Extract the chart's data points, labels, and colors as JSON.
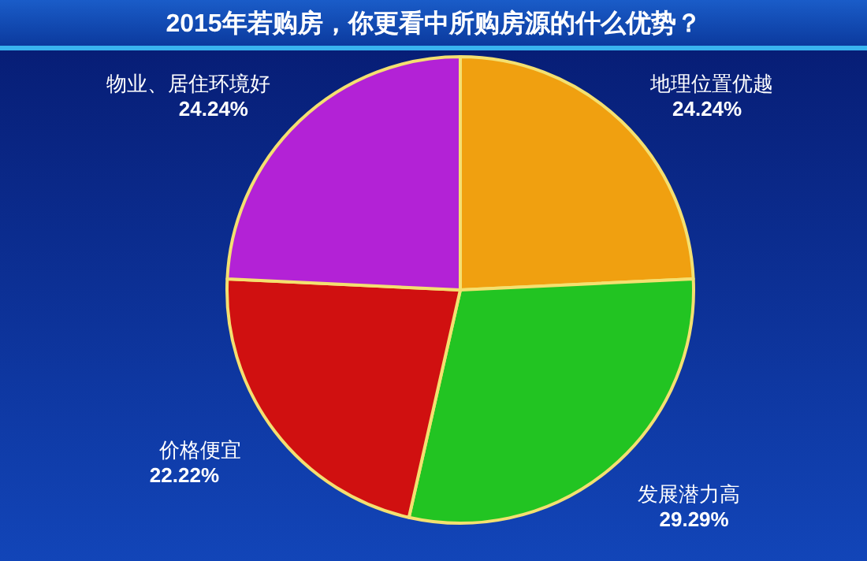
{
  "chart_data": {
    "type": "pie",
    "title": "2015年若购房，你更看中所购房源的什么优势？",
    "categories": [
      "地理位置优越",
      "发展潜力高",
      "价格便宜",
      "物业、居住环境好"
    ],
    "values": [
      24.24,
      29.29,
      22.22,
      24.24
    ],
    "value_labels": [
      "24.24%",
      "29.29%",
      "22.22%",
      "24.24%"
    ],
    "colors": [
      "#f0a010",
      "#22c422",
      "#d01010",
      "#b322d6"
    ]
  }
}
